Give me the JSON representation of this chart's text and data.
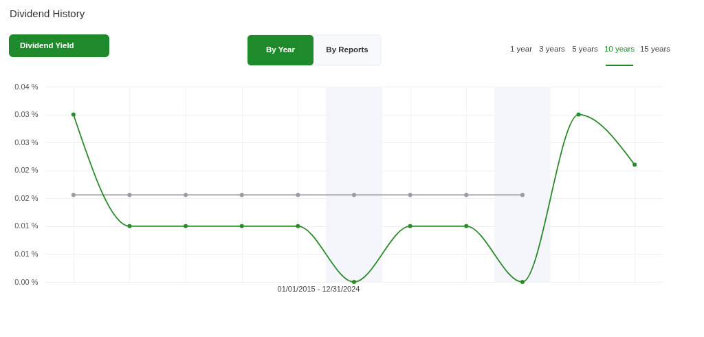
{
  "chart_data": {
    "type": "line",
    "title": "Dividend History",
    "xlabel": "01/01/2015 - 12/31/2024",
    "categories": [
      null,
      null,
      null,
      null,
      null,
      null,
      null,
      null,
      null,
      null,
      null
    ],
    "series": [
      {
        "color": "#2b8a2b",
        "values": [
          0.03,
          0.01,
          0.01,
          0.01,
          0.01,
          0,
          0.01,
          0.01,
          0,
          0.03,
          0.021
        ]
      },
      {
        "color": "#9a9aa2",
        "values": [
          0.0156,
          0.0156,
          0.0156,
          0.0156,
          0.0156,
          0.0156,
          0.0156,
          0.0156,
          0.0156,
          null,
          null
        ]
      }
    ],
    "ylim": [
      0,
      0.035
    ],
    "yticks": [
      {
        "value": 0,
        "label": "0.00 %"
      },
      {
        "value": 0.005,
        "label": "0.01 %"
      },
      {
        "value": 0.01,
        "label": "0.01 %"
      },
      {
        "value": 0.015,
        "label": "0.02 %"
      },
      {
        "value": 0.02,
        "label": "0.02 %"
      },
      {
        "value": 0.025,
        "label": "0.03 %"
      },
      {
        "value": 0.03,
        "label": "0.03 %"
      },
      {
        "value": 0.035,
        "label": "0.04 %"
      }
    ],
    "grid": true,
    "marker": "circle",
    "line_style": "solid",
    "annotations": [
      "Dividend Yield",
      "By Year",
      "By Reports",
      "1 year",
      "3 years",
      "5 years",
      "10 years",
      "15 years"
    ]
  }
}
